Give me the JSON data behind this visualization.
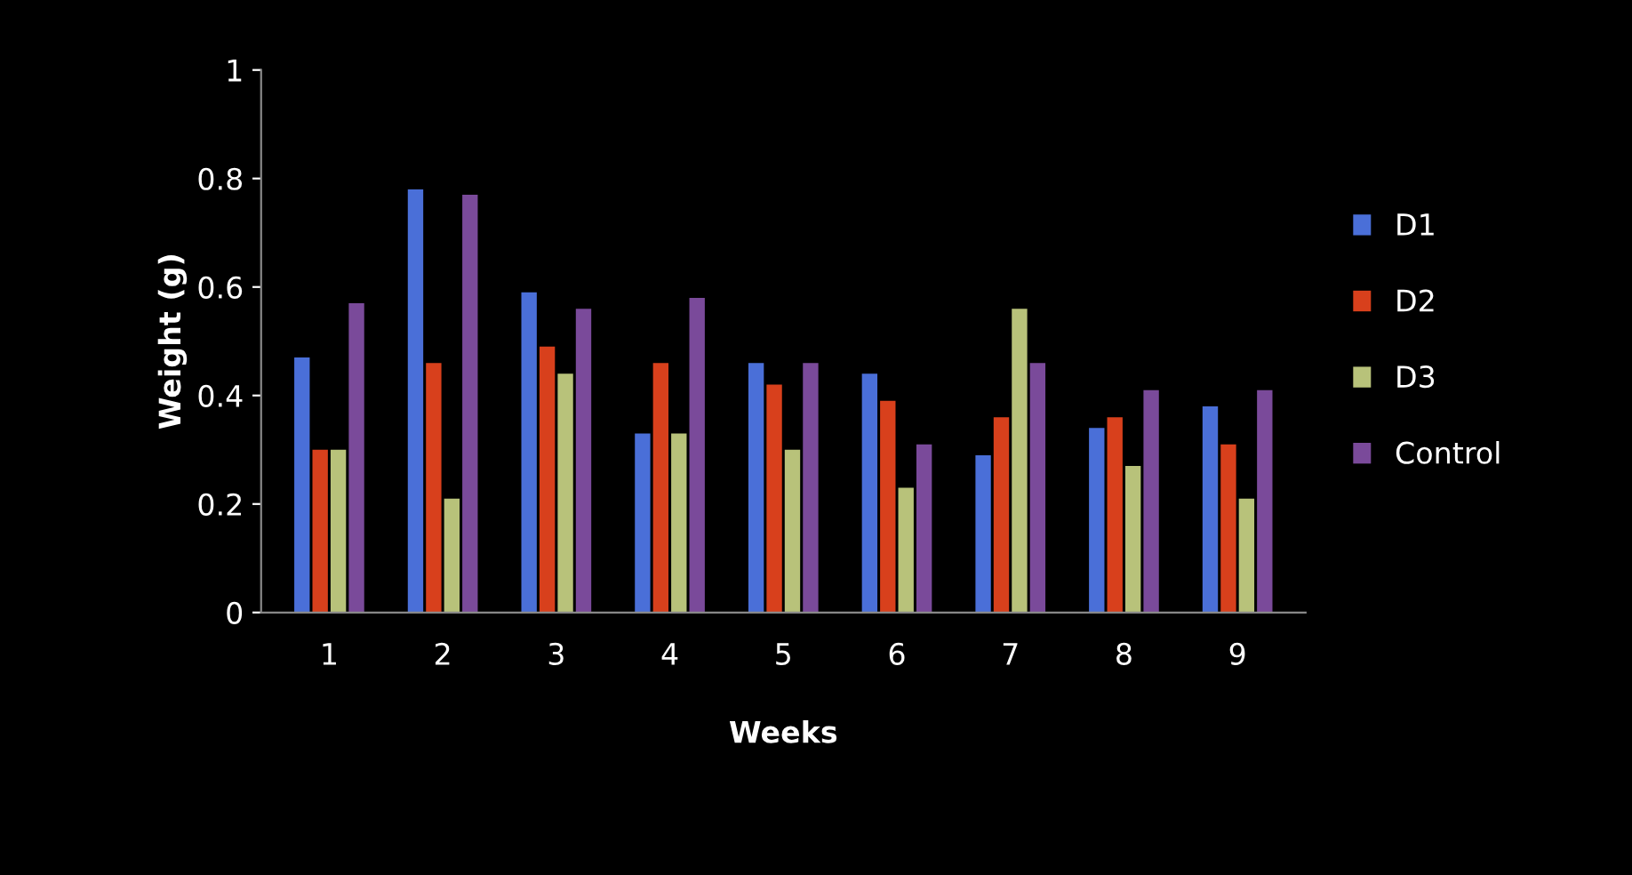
{
  "chart_data": {
    "type": "bar",
    "xlabel": "Weeks",
    "ylabel": "Weight (g)",
    "categories": [
      "1",
      "2",
      "3",
      "4",
      "5",
      "6",
      "7",
      "8",
      "9"
    ],
    "series": [
      {
        "name": "D1",
        "color": "#4a6fd8",
        "values": [
          0.47,
          0.78,
          0.59,
          0.33,
          0.46,
          0.44,
          0.29,
          0.34,
          0.38
        ]
      },
      {
        "name": "D2",
        "color": "#d8401c",
        "values": [
          0.3,
          0.46,
          0.49,
          0.46,
          0.42,
          0.39,
          0.36,
          0.36,
          0.31
        ]
      },
      {
        "name": "D3",
        "color": "#b8c27a",
        "values": [
          0.3,
          0.21,
          0.44,
          0.33,
          0.3,
          0.23,
          0.56,
          0.27,
          0.21
        ]
      },
      {
        "name": "Control",
        "color": "#7a4a9a",
        "values": [
          0.57,
          0.77,
          0.56,
          0.58,
          0.46,
          0.31,
          0.46,
          0.41,
          0.41
        ]
      }
    ],
    "ylim": [
      0,
      1
    ],
    "yticks": [
      0,
      0.2,
      0.4,
      0.6,
      0.8,
      1
    ],
    "grid": false,
    "legend": "right"
  }
}
